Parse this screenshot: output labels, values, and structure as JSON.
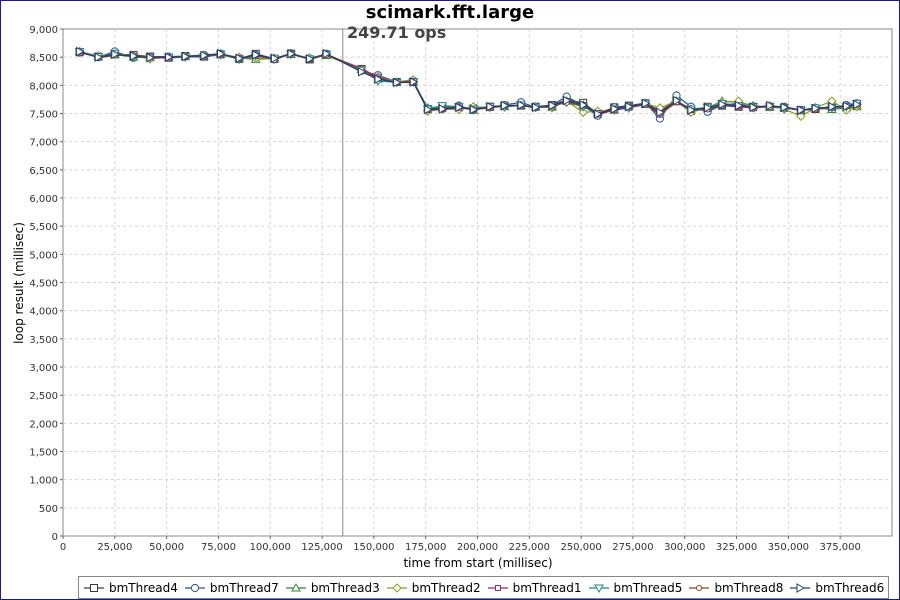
{
  "chart_data": {
    "type": "line",
    "title": "scimark.fft.large",
    "annotation": "249.71 ops",
    "annotation_x": 135000,
    "xlabel": "time from start (millisec)",
    "ylabel": "loop result (millisec)",
    "xlim": [
      0,
      400000
    ],
    "ylim": [
      0,
      9000
    ],
    "xticks": [
      0,
      25000,
      50000,
      75000,
      100000,
      125000,
      150000,
      175000,
      200000,
      225000,
      250000,
      275000,
      300000,
      325000,
      350000,
      375000
    ],
    "xtick_labels": [
      "0",
      "25,000",
      "50,000",
      "75,000",
      "100,000",
      "125,000",
      "150,000",
      "175,000",
      "200,000",
      "225,000",
      "250,000",
      "275,000",
      "300,000",
      "325,000",
      "350,000",
      "375,000"
    ],
    "yticks": [
      0,
      500,
      1000,
      1500,
      2000,
      2500,
      3000,
      3500,
      4000,
      4500,
      5000,
      5500,
      6000,
      6500,
      7000,
      7500,
      8000,
      8500,
      9000
    ],
    "ytick_labels": [
      "0",
      "500",
      "1,000",
      "1,500",
      "2,000",
      "2,500",
      "3,000",
      "3,500",
      "4,000",
      "4,500",
      "5,000",
      "5,500",
      "6,000",
      "6,500",
      "7,000",
      "7,500",
      "8,000",
      "8,500",
      "9,000"
    ],
    "grid": true,
    "legend_position": "bottom",
    "x": [
      8000,
      17000,
      25000,
      34000,
      42000,
      51000,
      59000,
      68000,
      76000,
      85000,
      93000,
      102000,
      110000,
      119000,
      127000,
      144000,
      152000,
      161000,
      169000,
      176000,
      183000,
      191000,
      198000,
      206000,
      213000,
      221000,
      228000,
      236000,
      243000,
      251000,
      258000,
      266000,
      273000,
      281000,
      288000,
      296000,
      303000,
      311000,
      318000,
      326000,
      333000,
      341000,
      348000,
      356000,
      363000,
      371000,
      378000,
      383000
    ],
    "series": [
      {
        "name": "bmThread4",
        "marker": "square",
        "color": "#3a3a3a",
        "values": [
          8590,
          8510,
          8550,
          8540,
          8510,
          8490,
          8520,
          8510,
          8550,
          8470,
          8560,
          8470,
          8560,
          8460,
          8550,
          8290,
          8130,
          8060,
          8060,
          7580,
          7600,
          7610,
          7590,
          7620,
          7640,
          7640,
          7620,
          7650,
          7740,
          7690,
          7500,
          7610,
          7640,
          7680,
          7550,
          7720,
          7550,
          7620,
          7640,
          7620,
          7620,
          7620,
          7600,
          7560,
          7580,
          7620,
          7620,
          7650
        ]
      },
      {
        "name": "bmThread7",
        "marker": "circle",
        "color": "#2a4f9a",
        "values": [
          8580,
          8500,
          8600,
          8490,
          8510,
          8510,
          8520,
          8540,
          8560,
          8470,
          8540,
          8460,
          8570,
          8470,
          8560,
          8260,
          8180,
          8060,
          8060,
          7560,
          7590,
          7640,
          7560,
          7610,
          7650,
          7700,
          7610,
          7650,
          7800,
          7640,
          7460,
          7610,
          7630,
          7690,
          7410,
          7820,
          7620,
          7530,
          7650,
          7680,
          7600,
          7630,
          7620,
          7560,
          7600,
          7610,
          7650,
          7680
        ]
      },
      {
        "name": "bmThread3",
        "marker": "triangle-up",
        "color": "#2c8a2c",
        "values": [
          8600,
          8510,
          8550,
          8500,
          8490,
          8500,
          8510,
          8520,
          8560,
          8490,
          8460,
          8480,
          8550,
          8480,
          8530,
          8280,
          8110,
          8060,
          8070,
          7600,
          7620,
          7620,
          7560,
          7620,
          7620,
          7640,
          7620,
          7610,
          7720,
          7650,
          7520,
          7560,
          7620,
          7660,
          7520,
          7720,
          7580,
          7600,
          7720,
          7700,
          7640,
          7610,
          7600,
          7560,
          7600,
          7570,
          7600,
          7620
        ]
      },
      {
        "name": "bmThread2",
        "marker": "diamond",
        "color": "#8a9a1a",
        "values": [
          8600,
          8520,
          8560,
          8530,
          8470,
          8500,
          8510,
          8530,
          8540,
          8500,
          8480,
          8470,
          8550,
          8490,
          8540,
          8270,
          8150,
          8060,
          8100,
          7540,
          7580,
          7570,
          7620,
          7610,
          7620,
          7650,
          7620,
          7600,
          7720,
          7520,
          7540,
          7560,
          7620,
          7680,
          7600,
          7720,
          7520,
          7600,
          7700,
          7720,
          7600,
          7640,
          7580,
          7450,
          7600,
          7720,
          7560,
          7620
        ]
      },
      {
        "name": "bmThread1",
        "marker": "square-small",
        "color": "#9a2a6a",
        "values": [
          8580,
          8520,
          8550,
          8520,
          8500,
          8480,
          8510,
          8500,
          8550,
          8490,
          8520,
          8470,
          8570,
          8460,
          8550,
          8300,
          8140,
          8050,
          8080,
          7560,
          7570,
          7600,
          7570,
          7600,
          7630,
          7640,
          7610,
          7620,
          7720,
          7650,
          7480,
          7560,
          7600,
          7660,
          7480,
          7700,
          7560,
          7580,
          7660,
          7620,
          7600,
          7620,
          7600,
          7560,
          7580,
          7600,
          7640,
          7660
        ]
      },
      {
        "name": "bmThread5",
        "marker": "triangle-down",
        "color": "#1a8a8a",
        "values": [
          8600,
          8510,
          8560,
          8510,
          8500,
          8500,
          8500,
          8510,
          8550,
          8460,
          8520,
          8480,
          8550,
          8470,
          8550,
          8280,
          8080,
          8050,
          8060,
          7580,
          7640,
          7620,
          7580,
          7620,
          7620,
          7650,
          7610,
          7630,
          7700,
          7620,
          7500,
          7580,
          7600,
          7680,
          7500,
          7720,
          7580,
          7600,
          7680,
          7640,
          7620,
          7620,
          7600,
          7560,
          7600,
          7600,
          7620,
          7680
        ]
      },
      {
        "name": "bmThread8",
        "marker": "circle-small",
        "color": "#7a4a2a",
        "values": [
          8600,
          8490,
          8530,
          8540,
          8510,
          8500,
          8500,
          8520,
          8550,
          8470,
          8530,
          8450,
          8560,
          8460,
          8540,
          8280,
          8120,
          8050,
          8050,
          7560,
          7580,
          7620,
          7570,
          7610,
          7640,
          7640,
          7600,
          7660,
          7690,
          7640,
          7510,
          7590,
          7620,
          7660,
          7500,
          7700,
          7560,
          7570,
          7640,
          7630,
          7620,
          7610,
          7620,
          7560,
          7570,
          7610,
          7620,
          7640
        ]
      },
      {
        "name": "bmThread6",
        "marker": "triangle-right",
        "color": "#2a3a7a",
        "values": [
          8600,
          8500,
          8550,
          8520,
          8490,
          8500,
          8510,
          8530,
          8560,
          8480,
          8540,
          8480,
          8560,
          8470,
          8560,
          8240,
          8110,
          8050,
          8060,
          7570,
          7580,
          7610,
          7570,
          7620,
          7640,
          7650,
          7610,
          7640,
          7730,
          7650,
          7490,
          7580,
          7620,
          7680,
          7520,
          7730,
          7560,
          7600,
          7660,
          7640,
          7610,
          7640,
          7610,
          7560,
          7590,
          7620,
          7630,
          7660
        ]
      }
    ]
  }
}
